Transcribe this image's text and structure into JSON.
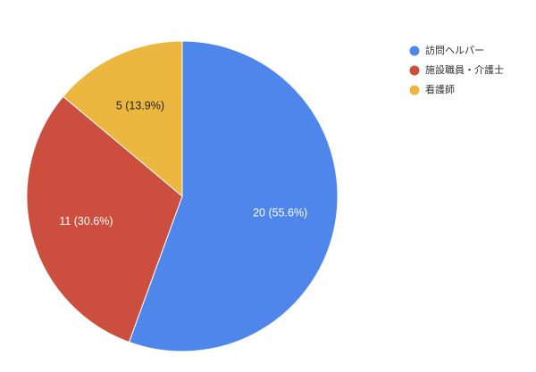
{
  "chart_data": {
    "type": "pie",
    "title": "",
    "legend_position": "right",
    "start_angle_deg": 0,
    "direction": "clockwise",
    "slices": [
      {
        "name": "訪問ヘルパー",
        "value": 20,
        "label": "20 (55.6%)",
        "color": "#4F86EC",
        "label_color": "#ffffff"
      },
      {
        "name": "施設職員・介護士",
        "value": 11,
        "label": "11 (30.6%)",
        "color": "#CC4E3E",
        "label_color": "#ffffff"
      },
      {
        "name": "看護師",
        "value": 5,
        "label": "5 (13.9%)",
        "color": "#EBB73F",
        "label_color": "#222222"
      }
    ]
  }
}
